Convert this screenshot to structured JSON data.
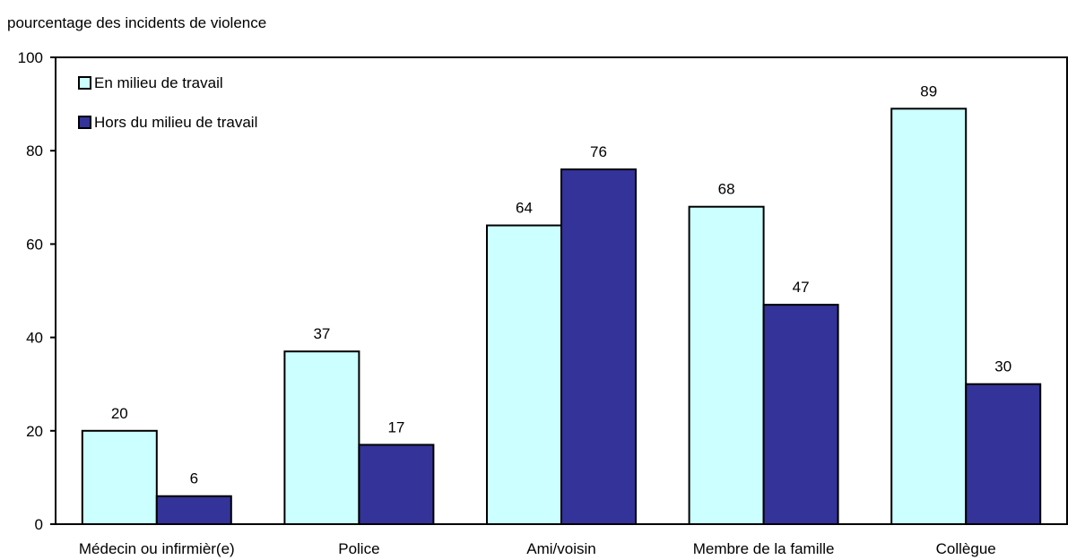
{
  "chart_data": {
    "type": "bar",
    "title": "",
    "xlabel": "",
    "ylabel": "pourcentage des incidents de violence",
    "ylim": [
      0,
      100
    ],
    "yticks": [
      0,
      20,
      40,
      60,
      80,
      100
    ],
    "grid": false,
    "legend_position": "top-left",
    "categories": [
      "Médecin ou infirmièr(e)",
      "Police",
      "Ami/voisin",
      "Membre de la famille",
      "Collègue"
    ],
    "series": [
      {
        "name": "En milieu de travail",
        "color": "#ccffff",
        "values": [
          20,
          37,
          64,
          68,
          89
        ]
      },
      {
        "name": "Hors du milieu de travail",
        "color": "#333399",
        "values": [
          6,
          17,
          76,
          47,
          30
        ]
      }
    ]
  }
}
